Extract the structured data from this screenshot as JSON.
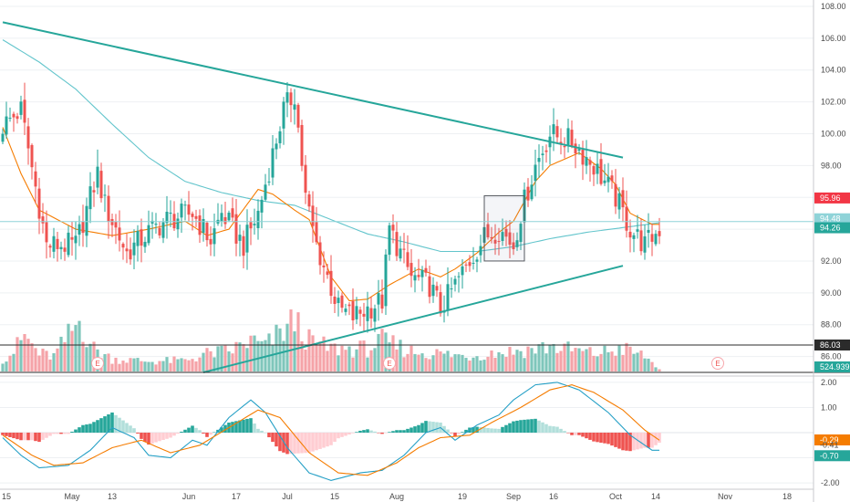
{
  "chart_data": {
    "type": "candlestick",
    "panes": [
      "price",
      "volume",
      "macd"
    ],
    "price_axis": {
      "ticks": [
        "108.00",
        "106.00",
        "104.00",
        "102.00",
        "100.00",
        "98.00",
        "96.00",
        "94.00",
        "92.00",
        "90.00",
        "88.00",
        "86.00"
      ],
      "ylim": [
        85.0,
        108.4
      ]
    },
    "macd_axis": {
      "ticks": [
        "2.00",
        "1.00",
        "-1.00",
        "-2.00"
      ],
      "ylim": [
        -2.25,
        2.25
      ]
    },
    "date_axis": {
      "labels": [
        "15",
        "May",
        "13",
        "Jun",
        "17",
        "Jul",
        "15",
        "Aug",
        "19",
        "Sep",
        "16",
        "Oct",
        "14",
        "Nov",
        "18"
      ]
    },
    "price_labels": [
      {
        "text": "95.96",
        "value": 95.96,
        "color": "#f23645"
      },
      {
        "text": "94.48",
        "value": 94.48,
        "color": "#8fd3d8"
      },
      {
        "text": "94.26",
        "value": 94.26,
        "color": "#26a69a"
      }
    ],
    "volume_labels": [
      {
        "text": "86.03",
        "color": "#2b2b2b"
      },
      {
        "text": "524.939K",
        "color": "#26a69a"
      }
    ],
    "macd_labels": [
      {
        "text": "-0.29",
        "value": -0.29,
        "color": "#f57c00"
      },
      {
        "text": "-0.41",
        "value": -0.41,
        "color": "#ffffff"
      },
      {
        "text": "-0.70",
        "value": -0.7,
        "color": "#26a69a"
      }
    ],
    "earnings_markers": [
      "E",
      "E",
      "E"
    ],
    "price_pivots": [
      [
        0,
        100.5
      ],
      [
        5,
        101.5
      ],
      [
        12,
        93.0
      ],
      [
        20,
        93.0
      ],
      [
        26,
        97.5
      ],
      [
        28,
        95.5
      ],
      [
        34,
        92.5
      ],
      [
        40,
        93.8
      ],
      [
        45,
        94.6
      ],
      [
        52,
        95.0
      ],
      [
        57,
        93.3
      ],
      [
        60,
        95.0
      ],
      [
        66,
        93.0
      ],
      [
        70,
        95.0
      ],
      [
        77,
        101.5
      ],
      [
        80,
        102.5
      ],
      [
        83,
        96.0
      ],
      [
        86,
        93.0
      ],
      [
        92,
        89.0
      ],
      [
        96,
        88.5
      ],
      [
        104,
        89.5
      ],
      [
        106,
        94.0
      ],
      [
        112,
        91.0
      ],
      [
        117,
        90.5
      ],
      [
        120,
        89.0
      ],
      [
        124,
        90.5
      ],
      [
        128,
        92.0
      ],
      [
        132,
        93.5
      ],
      [
        136,
        94.0
      ],
      [
        140,
        93.0
      ],
      [
        142,
        95.0
      ],
      [
        146,
        98.0
      ],
      [
        150,
        100.0
      ],
      [
        156,
        99.5
      ],
      [
        162,
        98.0
      ],
      [
        168,
        96.0
      ],
      [
        172,
        94.0
      ],
      [
        176,
        93.0
      ],
      [
        180,
        94.0
      ]
    ],
    "ma_slow_pivots": [
      [
        0,
        105.9
      ],
      [
        10,
        104.5
      ],
      [
        20,
        102.8
      ],
      [
        30,
        100.6
      ],
      [
        40,
        98.5
      ],
      [
        50,
        97.0
      ],
      [
        60,
        96.3
      ],
      [
        70,
        95.8
      ],
      [
        80,
        95.5
      ],
      [
        90,
        94.6
      ],
      [
        100,
        93.7
      ],
      [
        110,
        93.2
      ],
      [
        120,
        92.6
      ],
      [
        130,
        92.6
      ],
      [
        140,
        92.9
      ],
      [
        150,
        93.4
      ],
      [
        160,
        93.8
      ],
      [
        170,
        94.1
      ],
      [
        180,
        94.4
      ]
    ],
    "ma_fast_pivots": [
      [
        0,
        100.4
      ],
      [
        5,
        97.5
      ],
      [
        10,
        95.2
      ],
      [
        20,
        94.0
      ],
      [
        30,
        93.6
      ],
      [
        40,
        94.0
      ],
      [
        50,
        94.5
      ],
      [
        56,
        93.6
      ],
      [
        62,
        94.0
      ],
      [
        70,
        96.5
      ],
      [
        74,
        96.2
      ],
      [
        80,
        95.2
      ],
      [
        84,
        94.6
      ],
      [
        90,
        91.0
      ],
      [
        95,
        89.5
      ],
      [
        100,
        89.6
      ],
      [
        106,
        90.5
      ],
      [
        114,
        91.5
      ],
      [
        120,
        91.0
      ],
      [
        124,
        91.5
      ],
      [
        130,
        92.5
      ],
      [
        136,
        93.8
      ],
      [
        140,
        94.5
      ],
      [
        146,
        97.0
      ],
      [
        150,
        98.0
      ],
      [
        158,
        98.8
      ],
      [
        164,
        97.8
      ],
      [
        168,
        96.8
      ],
      [
        172,
        95.0
      ],
      [
        178,
        94.3
      ],
      [
        180,
        94.3
      ]
    ],
    "volume_pivots": [
      [
        0,
        0.25
      ],
      [
        3,
        0.4
      ],
      [
        6,
        0.7
      ],
      [
        10,
        0.35
      ],
      [
        14,
        0.3
      ],
      [
        21,
        1.0
      ],
      [
        25,
        0.45
      ],
      [
        30,
        0.25
      ],
      [
        40,
        0.2
      ],
      [
        50,
        0.22
      ],
      [
        56,
        0.35
      ],
      [
        62,
        0.4
      ],
      [
        68,
        0.6
      ],
      [
        72,
        0.5
      ],
      [
        80,
        1.0
      ],
      [
        84,
        0.6
      ],
      [
        90,
        0.45
      ],
      [
        100,
        0.45
      ],
      [
        104,
        0.6
      ],
      [
        108,
        0.5
      ],
      [
        112,
        0.4
      ],
      [
        120,
        0.35
      ],
      [
        127,
        0.3
      ],
      [
        132,
        0.35
      ],
      [
        140,
        0.4
      ],
      [
        146,
        0.45
      ],
      [
        150,
        0.5
      ],
      [
        158,
        0.4
      ],
      [
        162,
        0.35
      ],
      [
        170,
        0.45
      ],
      [
        176,
        0.3
      ],
      [
        180,
        0.05
      ]
    ],
    "macd_line_pivots": [
      [
        0,
        -0.2
      ],
      [
        5,
        -0.9
      ],
      [
        10,
        -1.4
      ],
      [
        18,
        -1.3
      ],
      [
        24,
        -0.7
      ],
      [
        30,
        0.2
      ],
      [
        36,
        -0.2
      ],
      [
        40,
        -0.9
      ],
      [
        46,
        -1.0
      ],
      [
        52,
        -0.3
      ],
      [
        56,
        -0.5
      ],
      [
        62,
        0.6
      ],
      [
        68,
        1.3
      ],
      [
        72,
        0.8
      ],
      [
        78,
        -0.6
      ],
      [
        84,
        -1.6
      ],
      [
        90,
        -1.9
      ],
      [
        98,
        -1.6
      ],
      [
        104,
        -1.5
      ],
      [
        110,
        -0.9
      ],
      [
        116,
        0.0
      ],
      [
        120,
        0.2
      ],
      [
        124,
        -0.3
      ],
      [
        130,
        0.3
      ],
      [
        136,
        0.7
      ],
      [
        140,
        1.3
      ],
      [
        146,
        1.9
      ],
      [
        152,
        2.0
      ],
      [
        158,
        1.7
      ],
      [
        166,
        0.8
      ],
      [
        172,
        -0.1
      ],
      [
        178,
        -0.7
      ],
      [
        180,
        -0.7
      ]
    ],
    "macd_signal_pivots": [
      [
        0,
        -0.1
      ],
      [
        8,
        -0.9
      ],
      [
        14,
        -1.3
      ],
      [
        22,
        -1.2
      ],
      [
        30,
        -0.6
      ],
      [
        38,
        -0.3
      ],
      [
        46,
        -0.8
      ],
      [
        54,
        -0.5
      ],
      [
        62,
        0.2
      ],
      [
        70,
        0.9
      ],
      [
        76,
        0.6
      ],
      [
        84,
        -0.8
      ],
      [
        92,
        -1.6
      ],
      [
        100,
        -1.7
      ],
      [
        108,
        -1.2
      ],
      [
        114,
        -0.6
      ],
      [
        120,
        -0.2
      ],
      [
        128,
        -0.1
      ],
      [
        134,
        0.4
      ],
      [
        142,
        1.0
      ],
      [
        150,
        1.7
      ],
      [
        156,
        1.9
      ],
      [
        162,
        1.6
      ],
      [
        170,
        0.9
      ],
      [
        176,
        0.1
      ],
      [
        180,
        -0.3
      ]
    ],
    "trendlines": [
      {
        "from": [
          0,
          107.0
        ],
        "to": [
          170,
          98.5
        ],
        "color": "#26a69a"
      },
      {
        "from": [
          55,
          85.0
        ],
        "to": [
          170,
          91.7
        ],
        "color": "#26a69a"
      }
    ],
    "highlight_box": {
      "from_bar": 132,
      "to_bar": 143,
      "low": 92.0,
      "high": 96.1
    }
  }
}
